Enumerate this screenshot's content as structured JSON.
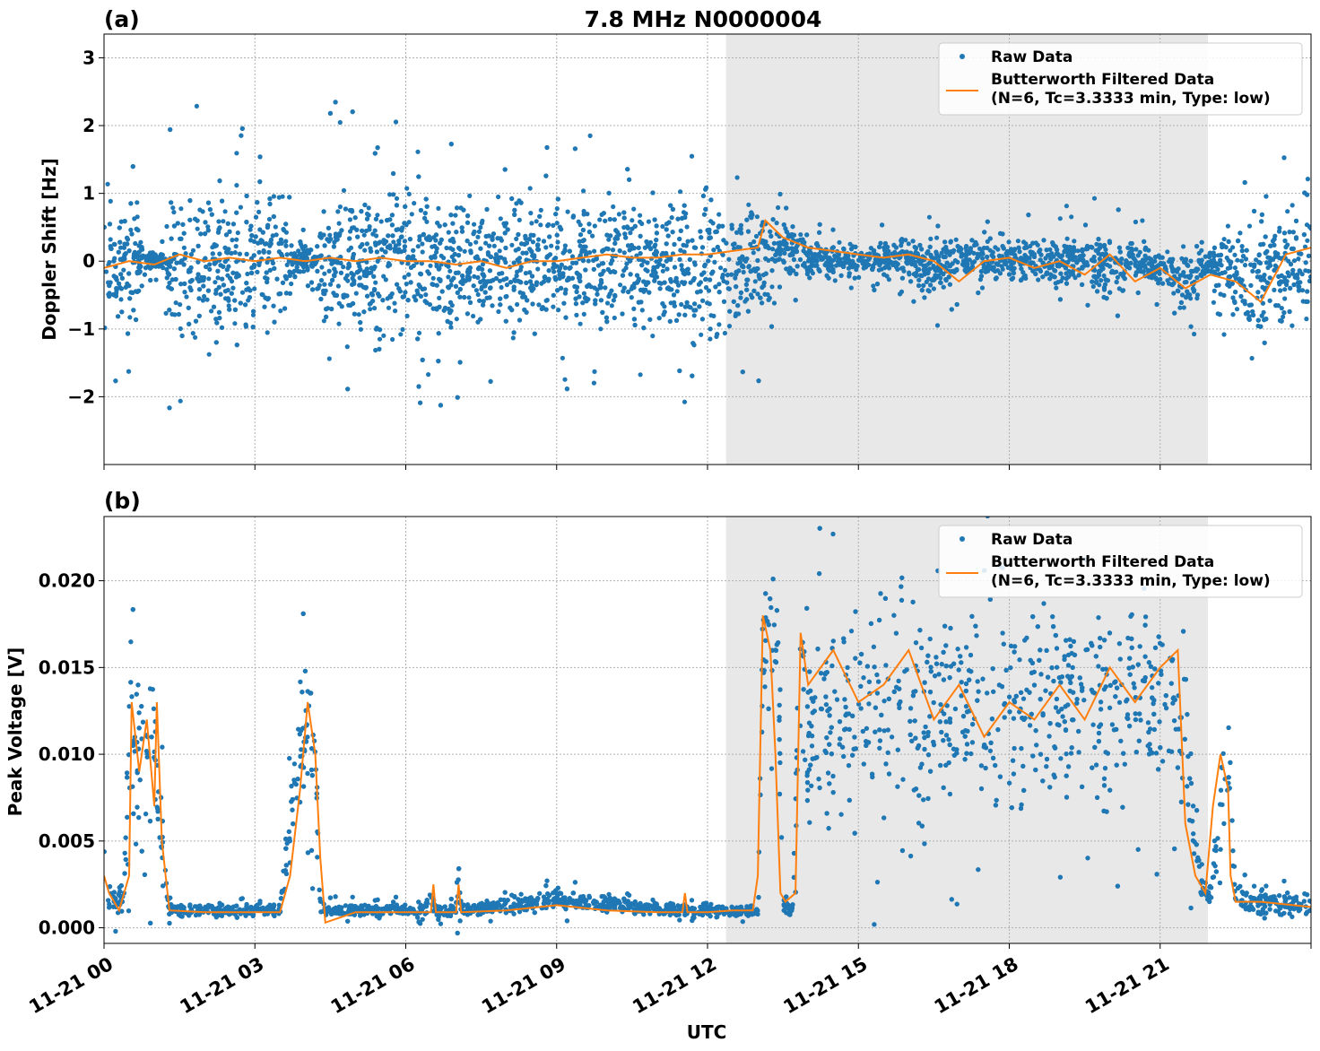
{
  "figure": {
    "title": "7.8 MHz N0000004",
    "xlabel": "UTC",
    "x_tick_labels": [
      "11-21 00",
      "11-21 03",
      "11-21 06",
      "11-21 09",
      "11-21 12",
      "11-21 15",
      "11-21 18",
      "11-21 21"
    ],
    "shaded_region_hours": [
      12.37,
      21.95
    ],
    "x_range_hours": [
      0,
      24
    ],
    "colors": {
      "raw": "#1f77b4",
      "filtered": "#ff7f0e",
      "shade": "#e8e8e8",
      "grid": "#b0b0b0"
    }
  },
  "legend": {
    "raw_label": "Raw Data",
    "filtered_label_line1": "Butterworth Filtered Data",
    "filtered_label_line2": "(N=6, Tc=3.3333 min, Type: low)"
  },
  "chart_data": [
    {
      "type": "scatter",
      "panel_label": "(a)",
      "ylabel": "Doppler Shift [Hz]",
      "ylim": [
        -3.0,
        3.35
      ],
      "y_ticks": [
        -2,
        -1,
        0,
        1,
        2,
        3
      ],
      "y_tick_labels": [
        "−2",
        "−1",
        "0",
        "1",
        "2",
        "3"
      ],
      "grid": true,
      "legend_position": "top-right",
      "series": [
        {
          "name": "Raw Data",
          "envelope": {
            "x_hours": [
              0,
              0.6,
              0.8,
              1.2,
              1.3,
              2.0,
              2.5,
              3.0,
              3.5,
              3.8,
              4.2,
              4.35,
              5,
              6,
              7,
              8,
              9,
              10,
              11,
              12,
              12.5,
              13.0,
              13.2,
              13.5,
              14,
              15,
              16,
              16.5,
              17,
              18,
              19,
              20,
              20.5,
              21,
              21.5,
              22,
              22.3,
              22.8,
              23.5,
              24
            ],
            "upper": [
              1.1,
              1.1,
              0.2,
              0.2,
              1.3,
              1.5,
              1.4,
              1.4,
              1.5,
              0.4,
              0.3,
              1.5,
              1.4,
              1.3,
              1.3,
              1.2,
              1.2,
              1.3,
              1.3,
              1.3,
              1.3,
              1.3,
              0.8,
              0.9,
              0.4,
              0.3,
              0.4,
              0.6,
              0.5,
              0.4,
              0.5,
              0.6,
              0.4,
              0.3,
              0.4,
              0.3,
              0.7,
              1.0,
              1.0,
              1.2
            ],
            "lower": [
              -1.1,
              -1.2,
              -0.2,
              -0.2,
              -1.5,
              -1.6,
              -1.5,
              -1.5,
              -1.4,
              -0.3,
              -0.3,
              -1.6,
              -1.5,
              -1.4,
              -1.4,
              -1.3,
              -1.3,
              -1.3,
              -1.4,
              -1.5,
              -1.3,
              -1.2,
              -0.8,
              -0.5,
              -0.3,
              -0.3,
              -0.3,
              -0.8,
              -0.4,
              -0.4,
              -0.5,
              -0.7,
              -0.4,
              -0.5,
              -1.0,
              -0.4,
              -0.8,
              -1.6,
              -1.3,
              -1.0
            ]
          }
        },
        {
          "name": "Butterworth Filtered Data\n(N=6, Tc=3.3333 min, Type: low)",
          "x_hours": [
            0,
            0.5,
            1.0,
            1.5,
            2.0,
            2.5,
            3.0,
            3.5,
            4.0,
            4.5,
            5,
            5.5,
            6,
            6.5,
            7,
            7.5,
            8,
            8.5,
            9,
            9.5,
            10,
            10.5,
            11,
            11.5,
            12,
            12.5,
            13.0,
            13.15,
            13.5,
            14,
            14.5,
            15,
            15.5,
            16,
            16.5,
            17,
            17.5,
            18,
            18.5,
            19,
            19.5,
            20,
            20.5,
            21,
            21.5,
            22,
            22.5,
            23,
            23.5,
            24
          ],
          "y": [
            -0.1,
            0.0,
            -0.05,
            0.1,
            0.0,
            0.05,
            0.0,
            0.05,
            0.0,
            0.05,
            0.0,
            0.05,
            0.0,
            0.0,
            -0.05,
            0.0,
            -0.1,
            0.0,
            0.0,
            0.05,
            0.1,
            0.05,
            0.05,
            0.1,
            0.1,
            0.15,
            0.2,
            0.6,
            0.35,
            0.2,
            0.15,
            0.1,
            0.05,
            0.1,
            0.0,
            -0.3,
            0.0,
            0.05,
            -0.1,
            0.0,
            -0.2,
            0.1,
            -0.3,
            -0.1,
            -0.4,
            -0.2,
            -0.3,
            -0.6,
            0.1,
            0.2
          ]
        }
      ]
    },
    {
      "type": "scatter",
      "panel_label": "(b)",
      "ylabel": "Peak Voltage [V]",
      "ylim": [
        -0.0009,
        0.0237
      ],
      "y_ticks": [
        0,
        0.005,
        0.01,
        0.015,
        0.02
      ],
      "y_tick_labels": [
        "0.000",
        "0.005",
        "0.010",
        "0.015",
        "0.020"
      ],
      "grid": true,
      "legend_position": "top-right",
      "series": [
        {
          "name": "Raw Data",
          "envelope": {
            "x_hours": [
              0,
              0.1,
              0.4,
              0.5,
              0.6,
              0.8,
              1.0,
              1.15,
              1.3,
              3.5,
              3.8,
              4.0,
              4.2,
              4.3,
              4.4,
              6.4,
              6.5,
              6.6,
              7.0,
              7.05,
              7.1,
              9.0,
              11.5,
              12.0,
              12.5,
              13.0,
              13.1,
              13.4,
              13.5,
              13.7,
              13.8,
              14.0,
              15.0,
              16.0,
              17.0,
              18.0,
              19.0,
              20.0,
              21.0,
              21.5,
              21.8,
              22.0,
              22.3,
              22.4,
              22.5,
              23.0,
              24.0
            ],
            "upper": [
              0.006,
              0.003,
              0.003,
              0.019,
              0.016,
              0.017,
              0.016,
              0.009,
              0.0015,
              0.0015,
              0.014,
              0.017,
              0.016,
              0.002,
              0.0015,
              0.0015,
              0.003,
              0.0015,
              0.0015,
              0.006,
              0.0015,
              0.0025,
              0.0015,
              0.0015,
              0.0015,
              0.0015,
              0.021,
              0.022,
              0.002,
              0.0015,
              0.02,
              0.019,
              0.021,
              0.022,
              0.021,
              0.021,
              0.022,
              0.021,
              0.021,
              0.019,
              0.004,
              0.003,
              0.014,
              0.014,
              0.003,
              0.0025,
              0.002
            ],
            "lower": [
              0.0005,
              0.0005,
              0.0005,
              0.004,
              0.004,
              0.003,
              0.003,
              0.0005,
              0.0005,
              0.0005,
              0.004,
              0.006,
              0.004,
              0.0005,
              0.0005,
              0.0005,
              0.0005,
              0.0005,
              0.0005,
              0.0005,
              0.0005,
              0.0008,
              0.0005,
              0.0005,
              0.0005,
              0.0005,
              0.012,
              0.01,
              0.0005,
              0.0005,
              0.006,
              0.005,
              0.004,
              0.003,
              0.005,
              0.004,
              0.004,
              0.005,
              0.006,
              0.003,
              0.0005,
              0.0005,
              0.005,
              0.005,
              0.0005,
              0.0003,
              0.0005
            ]
          }
        },
        {
          "name": "Butterworth Filtered Data\n(N=6, Tc=3.3333 min, Type: low)",
          "x_hours": [
            0,
            0.1,
            0.3,
            0.5,
            0.55,
            0.7,
            0.85,
            1.0,
            1.05,
            1.15,
            1.3,
            2,
            3,
            3.5,
            3.7,
            3.9,
            4.05,
            4.2,
            4.3,
            4.4,
            5,
            6,
            6.5,
            6.55,
            6.6,
            7,
            7.05,
            7.1,
            8,
            9,
            10,
            11,
            11.5,
            11.55,
            11.6,
            12,
            12.5,
            12.9,
            13.0,
            13.1,
            13.25,
            13.35,
            13.45,
            13.55,
            13.75,
            13.85,
            14,
            14.5,
            15,
            15.5,
            16,
            16.5,
            17,
            17.5,
            18,
            18.5,
            19,
            19.5,
            20,
            20.5,
            21,
            21.35,
            21.5,
            21.7,
            21.9,
            22.05,
            22.2,
            22.35,
            22.4,
            22.5,
            23,
            24
          ],
          "y": [
            0.003,
            0.002,
            0.001,
            0.003,
            0.013,
            0.009,
            0.012,
            0.007,
            0.013,
            0.005,
            0.001,
            0.0009,
            0.0009,
            0.0009,
            0.003,
            0.008,
            0.013,
            0.01,
            0.004,
            0.0003,
            0.0009,
            0.0009,
            0.0009,
            0.0025,
            0.0009,
            0.0009,
            0.0025,
            0.0009,
            0.001,
            0.0013,
            0.001,
            0.0009,
            0.0009,
            0.002,
            0.0009,
            0.0009,
            0.001,
            0.001,
            0.003,
            0.018,
            0.016,
            0.01,
            0.002,
            0.0015,
            0.002,
            0.017,
            0.014,
            0.016,
            0.013,
            0.014,
            0.016,
            0.012,
            0.014,
            0.011,
            0.013,
            0.012,
            0.014,
            0.012,
            0.015,
            0.013,
            0.015,
            0.016,
            0.006,
            0.003,
            0.002,
            0.007,
            0.01,
            0.008,
            0.003,
            0.0015,
            0.0015,
            0.0012
          ]
        }
      ]
    }
  ]
}
